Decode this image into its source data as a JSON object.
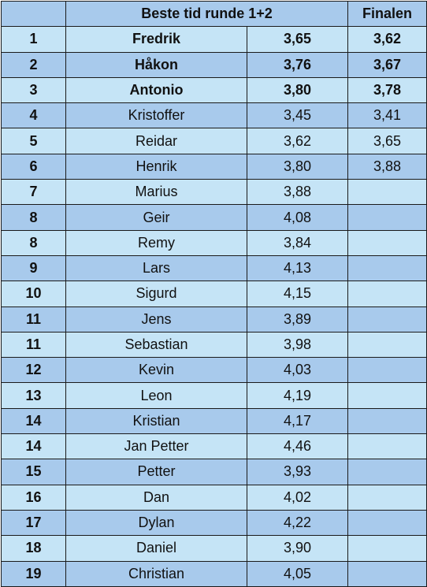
{
  "header": {
    "rank": "",
    "best_time": "Beste tid runde 1+2",
    "final": "Finalen"
  },
  "rows": [
    {
      "rank": "1",
      "name": "Fredrik",
      "time": "3,65",
      "final": "3,62"
    },
    {
      "rank": "2",
      "name": "Håkon",
      "time": "3,76",
      "final": "3,67"
    },
    {
      "rank": "3",
      "name": "Antonio",
      "time": "3,80",
      "final": "3,78"
    },
    {
      "rank": "4",
      "name": "Kristoffer",
      "time": "3,45",
      "final": "3,41"
    },
    {
      "rank": "5",
      "name": "Reidar",
      "time": "3,62",
      "final": "3,65"
    },
    {
      "rank": "6",
      "name": "Henrik",
      "time": "3,80",
      "final": "3,88"
    },
    {
      "rank": "7",
      "name": "Marius",
      "time": "3,88",
      "final": ""
    },
    {
      "rank": "8",
      "name": "Geir",
      "time": "4,08",
      "final": ""
    },
    {
      "rank": "8",
      "name": "Remy",
      "time": "3,84",
      "final": ""
    },
    {
      "rank": "9",
      "name": "Lars",
      "time": "4,13",
      "final": ""
    },
    {
      "rank": "10",
      "name": "Sigurd",
      "time": "4,15",
      "final": ""
    },
    {
      "rank": "11",
      "name": "Jens",
      "time": "3,89",
      "final": ""
    },
    {
      "rank": "11",
      "name": "Sebastian",
      "time": "3,98",
      "final": ""
    },
    {
      "rank": "12",
      "name": "Kevin",
      "time": "4,03",
      "final": ""
    },
    {
      "rank": "13",
      "name": "Leon",
      "time": "4,19",
      "final": ""
    },
    {
      "rank": "14",
      "name": "Kristian",
      "time": "4,17",
      "final": ""
    },
    {
      "rank": "14",
      "name": "Jan Petter",
      "time": "4,46",
      "final": ""
    },
    {
      "rank": "15",
      "name": "Petter",
      "time": "3,93",
      "final": ""
    },
    {
      "rank": "16",
      "name": "Dan",
      "time": "4,02",
      "final": ""
    },
    {
      "rank": "17",
      "name": "Dylan",
      "time": "4,22",
      "final": ""
    },
    {
      "rank": "18",
      "name": "Daniel",
      "time": "3,90",
      "final": ""
    },
    {
      "rank": "19",
      "name": "Christian",
      "time": "4,05",
      "final": ""
    }
  ],
  "colors": {
    "row_dark": "#a8caec",
    "row_light": "#c5e4f6",
    "border": "#1a1a1a"
  }
}
